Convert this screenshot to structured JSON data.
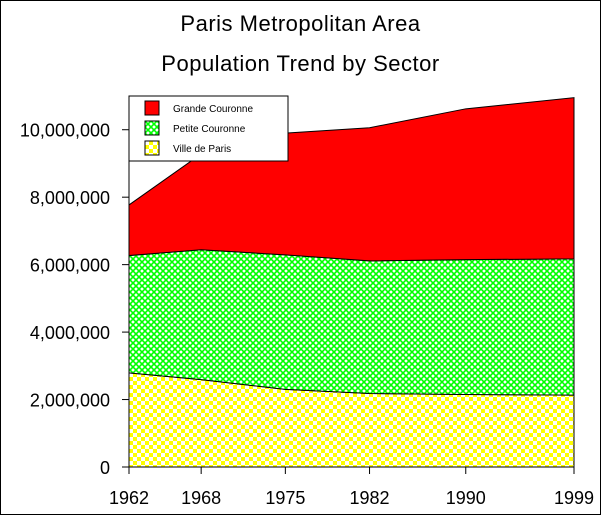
{
  "chart_data": {
    "type": "area",
    "stacked": true,
    "title": "Paris Metropolitan Area",
    "subtitle": "Population Trend by Sector",
    "x": [
      1962,
      1968,
      1975,
      1982,
      1990,
      1999
    ],
    "x_tick_labels": [
      "1962",
      "1968",
      "1975",
      "1982",
      "1990",
      "1999"
    ],
    "y_ticks": [
      0,
      2000000,
      4000000,
      6000000,
      8000000,
      10000000
    ],
    "y_tick_labels": [
      "0",
      "2,000,000",
      "4,000,000",
      "6,000,000",
      "8,000,000",
      "10,000,000"
    ],
    "ylim": [
      0,
      11000000
    ],
    "grid": false,
    "legend_position": "top-left",
    "series": [
      {
        "name": "Ville de Paris",
        "values": [
          2790000,
          2590000,
          2300000,
          2180000,
          2150000,
          2130000
        ],
        "color": "#ffff00",
        "pattern": "checker"
      },
      {
        "name": "Petite Couronne",
        "values": [
          3480000,
          3850000,
          3990000,
          3930000,
          4000000,
          4040000
        ],
        "color": "#00ff00",
        "pattern": "crosshatch"
      },
      {
        "name": "Grande Couronne",
        "values": [
          1500000,
          2840000,
          3610000,
          3950000,
          4470000,
          4780000
        ],
        "color": "#ff0000",
        "pattern": "solid"
      }
    ],
    "legend_order": [
      "Grande Couronne",
      "Petite Couronne",
      "Ville de Paris"
    ]
  }
}
